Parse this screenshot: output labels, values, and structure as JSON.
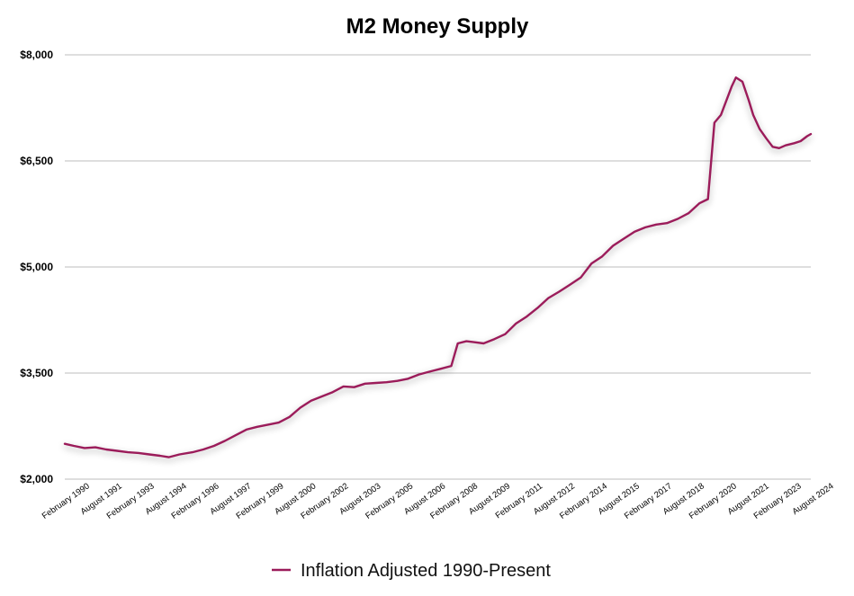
{
  "chart_data": {
    "type": "line",
    "title": "M2 Money Supply",
    "xlabel": "",
    "ylabel": "",
    "ylim": [
      2000,
      8000
    ],
    "yticks": [
      2000,
      3500,
      5000,
      6500,
      8000
    ],
    "ytick_labels": [
      "$2,000",
      "$3,500",
      "$5,000",
      "$6,500",
      "$8,000"
    ],
    "xlim": [
      1990.08,
      2024.67
    ],
    "xticks": [
      {
        "label": "February 1990",
        "x": 1990.08
      },
      {
        "label": "August 1991",
        "x": 1991.58
      },
      {
        "label": "February 1993",
        "x": 1993.08
      },
      {
        "label": "August 1994",
        "x": 1994.58
      },
      {
        "label": "February 1996",
        "x": 1996.08
      },
      {
        "label": "August 1997",
        "x": 1997.58
      },
      {
        "label": "February 1999",
        "x": 1999.08
      },
      {
        "label": "August 2000",
        "x": 2000.58
      },
      {
        "label": "February 2002",
        "x": 2002.08
      },
      {
        "label": "August 2003",
        "x": 2003.58
      },
      {
        "label": "February 2005",
        "x": 2005.08
      },
      {
        "label": "August 2006",
        "x": 2006.58
      },
      {
        "label": "February 2008",
        "x": 2008.08
      },
      {
        "label": "August 2009",
        "x": 2009.58
      },
      {
        "label": "February 2011",
        "x": 2011.08
      },
      {
        "label": "August 2012",
        "x": 2012.58
      },
      {
        "label": "February 2014",
        "x": 2014.08
      },
      {
        "label": "August 2015",
        "x": 2015.58
      },
      {
        "label": "February 2017",
        "x": 2017.08
      },
      {
        "label": "August 2018",
        "x": 2018.58
      },
      {
        "label": "February 2020",
        "x": 2020.08
      },
      {
        "label": "August 2021",
        "x": 2021.58
      },
      {
        "label": "February 2023",
        "x": 2023.08
      },
      {
        "label": "August 2024",
        "x": 2024.58
      }
    ],
    "series": [
      {
        "name": "Inflation Adjusted 1990-Present",
        "color": "#9b1b5a",
        "x": [
          1990.08,
          1990.5,
          1991.0,
          1991.5,
          1992.0,
          1992.5,
          1993.0,
          1993.5,
          1994.0,
          1994.5,
          1994.9,
          1995.4,
          1996.0,
          1996.5,
          1997.0,
          1997.5,
          1998.0,
          1998.5,
          1999.0,
          1999.5,
          2000.0,
          2000.5,
          2001.0,
          2001.5,
          2002.0,
          2002.5,
          2003.0,
          2003.5,
          2004.0,
          2004.5,
          2005.0,
          2005.5,
          2006.0,
          2006.5,
          2007.0,
          2007.5,
          2008.0,
          2008.3,
          2008.7,
          2009.0,
          2009.5,
          2010.0,
          2010.5,
          2011.0,
          2011.5,
          2012.0,
          2012.5,
          2013.0,
          2013.5,
          2014.0,
          2014.5,
          2015.0,
          2015.5,
          2016.0,
          2016.5,
          2017.0,
          2017.5,
          2018.0,
          2018.5,
          2019.0,
          2019.5,
          2019.9,
          2020.2,
          2020.5,
          2021.0,
          2021.2,
          2021.5,
          2021.8,
          2022.0,
          2022.3,
          2022.6,
          2022.9,
          2023.2,
          2023.5,
          2023.9,
          2024.2,
          2024.5,
          2024.67
        ],
        "y": [
          2500,
          2470,
          2440,
          2450,
          2420,
          2400,
          2380,
          2370,
          2350,
          2330,
          2310,
          2350,
          2380,
          2420,
          2470,
          2540,
          2620,
          2700,
          2740,
          2770,
          2800,
          2880,
          3010,
          3110,
          3170,
          3230,
          3310,
          3300,
          3350,
          3360,
          3370,
          3390,
          3420,
          3480,
          3520,
          3560,
          3600,
          3920,
          3950,
          3940,
          3920,
          3980,
          4050,
          4200,
          4300,
          4420,
          4560,
          4650,
          4750,
          4850,
          5050,
          5150,
          5300,
          5400,
          5500,
          5560,
          5600,
          5620,
          5680,
          5760,
          5900,
          5960,
          7040,
          7150,
          7550,
          7680,
          7620,
          7350,
          7150,
          6950,
          6820,
          6700,
          6680,
          6720,
          6750,
          6780,
          6850,
          6880
        ]
      }
    ],
    "legend": {
      "position": "bottom-center",
      "label": "Inflation Adjusted 1990-Present"
    }
  }
}
